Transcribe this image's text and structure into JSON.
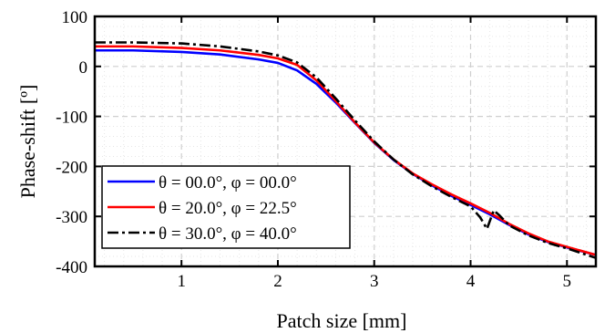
{
  "chart_data": {
    "type": "line",
    "xlabel": "Patch size [mm]",
    "ylabel": "Phase-shift [º]",
    "xlim": [
      0.1,
      5.3
    ],
    "ylim": [
      -400,
      100
    ],
    "xticks": [
      1,
      2,
      3,
      4,
      5
    ],
    "yticks": [
      -400,
      -300,
      -200,
      -100,
      0,
      100
    ],
    "xtick_labels": [
      "1",
      "2",
      "3",
      "4",
      "5"
    ],
    "ytick_labels": [
      "-400",
      "-300",
      "-200",
      "-100",
      "0",
      "100"
    ],
    "grid": true,
    "minor_grid": true,
    "legend_position": "lower-left",
    "series": [
      {
        "name": "θ = 00.0°, φ = 00.0°",
        "color": "#0000ff",
        "style": "solid",
        "x": [
          0.1,
          0.5,
          1.0,
          1.4,
          1.8,
          2.0,
          2.2,
          2.4,
          2.6,
          2.8,
          3.0,
          3.2,
          3.4,
          3.6,
          3.8,
          4.0,
          4.2,
          4.4,
          4.6,
          4.8,
          5.0,
          5.3
        ],
        "y": [
          32,
          32,
          29,
          24,
          14,
          7,
          -8,
          -35,
          -72,
          -113,
          -153,
          -187,
          -215,
          -238,
          -259,
          -277,
          -296,
          -317,
          -336,
          -351,
          -362,
          -377
        ]
      },
      {
        "name": "θ = 20.0°, φ = 22.5°",
        "color": "#ff0000",
        "style": "solid",
        "x": [
          0.1,
          0.5,
          1.0,
          1.4,
          1.8,
          2.0,
          2.2,
          2.4,
          2.6,
          2.8,
          3.0,
          3.2,
          3.4,
          3.6,
          3.8,
          4.0,
          4.2,
          4.4,
          4.6,
          4.8,
          5.0,
          5.3
        ],
        "y": [
          40,
          40,
          37,
          32,
          23,
          16,
          3,
          -28,
          -69,
          -112,
          -152,
          -186,
          -214,
          -236,
          -256,
          -274,
          -293,
          -315,
          -334,
          -350,
          -361,
          -377
        ]
      },
      {
        "name": "θ = 30.0°, φ = 40.0°",
        "color": "#000000",
        "style": "dashdot",
        "x": [
          0.1,
          0.5,
          1.0,
          1.4,
          1.8,
          2.0,
          2.2,
          2.4,
          2.6,
          2.8,
          3.0,
          3.2,
          3.4,
          3.6,
          3.8,
          4.0,
          4.1,
          4.17,
          4.24,
          4.3,
          4.4,
          4.6,
          4.8,
          5.0,
          5.3
        ],
        "y": [
          48,
          48,
          46,
          40,
          30,
          22,
          8,
          -22,
          -64,
          -108,
          -150,
          -186,
          -216,
          -240,
          -261,
          -280,
          -302,
          -325,
          -288,
          -298,
          -318,
          -338,
          -353,
          -364,
          -383
        ]
      }
    ]
  }
}
